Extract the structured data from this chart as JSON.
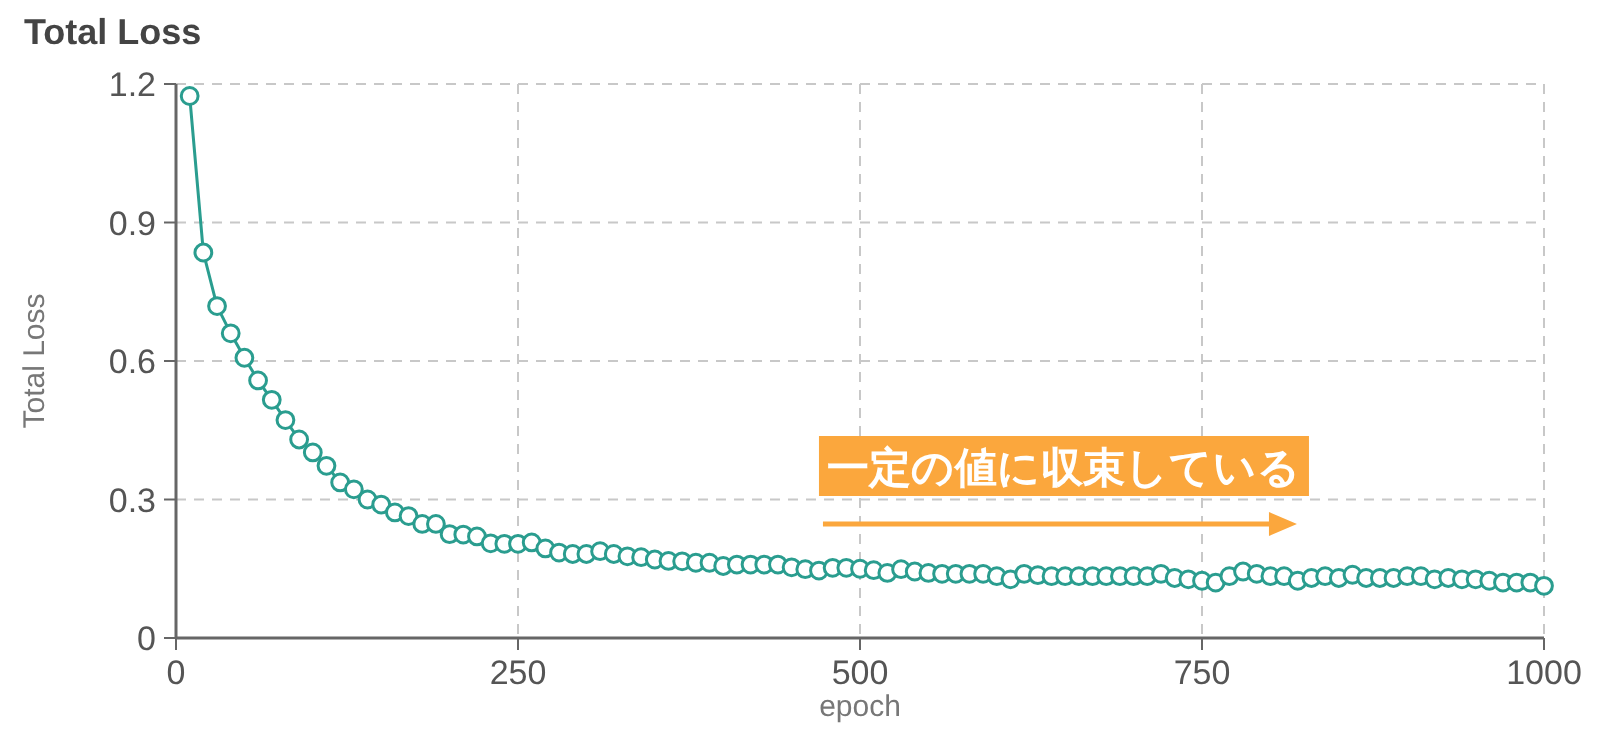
{
  "chart_data": {
    "type": "line",
    "title": "Total Loss",
    "xlabel": "epoch",
    "ylabel": "Total Loss",
    "x": [
      10,
      20,
      30,
      40,
      50,
      60,
      70,
      80,
      90,
      100,
      110,
      120,
      130,
      140,
      150,
      160,
      170,
      180,
      190,
      200,
      210,
      220,
      230,
      240,
      250,
      260,
      270,
      280,
      290,
      300,
      310,
      320,
      330,
      340,
      350,
      360,
      370,
      380,
      390,
      400,
      410,
      420,
      430,
      440,
      450,
      460,
      470,
      480,
      490,
      500,
      510,
      520,
      530,
      540,
      550,
      560,
      570,
      580,
      590,
      600,
      610,
      620,
      630,
      640,
      650,
      660,
      670,
      680,
      690,
      700,
      710,
      720,
      730,
      740,
      750,
      760,
      770,
      780,
      790,
      800,
      810,
      820,
      830,
      840,
      850,
      860,
      870,
      880,
      890,
      900,
      910,
      920,
      930,
      940,
      950,
      960,
      970,
      980,
      990,
      1000
    ],
    "series": [
      {
        "color": "#2a9d8f",
        "values": [
          1.174,
          0.835,
          0.719,
          0.66,
          0.607,
          0.558,
          0.516,
          0.472,
          0.43,
          0.402,
          0.373,
          0.337,
          0.322,
          0.3,
          0.289,
          0.272,
          0.264,
          0.247,
          0.247,
          0.225,
          0.224,
          0.22,
          0.205,
          0.204,
          0.204,
          0.207,
          0.194,
          0.185,
          0.182,
          0.182,
          0.188,
          0.182,
          0.177,
          0.175,
          0.17,
          0.167,
          0.166,
          0.163,
          0.163,
          0.156,
          0.159,
          0.159,
          0.159,
          0.159,
          0.153,
          0.149,
          0.146,
          0.152,
          0.152,
          0.15,
          0.147,
          0.141,
          0.149,
          0.144,
          0.141,
          0.139,
          0.139,
          0.139,
          0.139,
          0.134,
          0.127,
          0.139,
          0.136,
          0.134,
          0.134,
          0.134,
          0.134,
          0.134,
          0.134,
          0.134,
          0.134,
          0.139,
          0.13,
          0.127,
          0.124,
          0.12,
          0.134,
          0.144,
          0.139,
          0.134,
          0.134,
          0.124,
          0.13,
          0.134,
          0.13,
          0.137,
          0.13,
          0.13,
          0.13,
          0.134,
          0.134,
          0.127,
          0.13,
          0.127,
          0.127,
          0.124,
          0.12,
          0.12,
          0.12,
          0.113
        ]
      }
    ],
    "xlim": [
      0,
      1000
    ],
    "ylim": [
      0,
      1.2
    ],
    "xticks": [
      0,
      250,
      500,
      750,
      1000
    ],
    "yticks": [
      0,
      0.3,
      0.6,
      0.9,
      1.2
    ],
    "grid": true,
    "marker": "circle",
    "line_style": "solid",
    "annotations": [
      "一定の値に収束している"
    ]
  }
}
